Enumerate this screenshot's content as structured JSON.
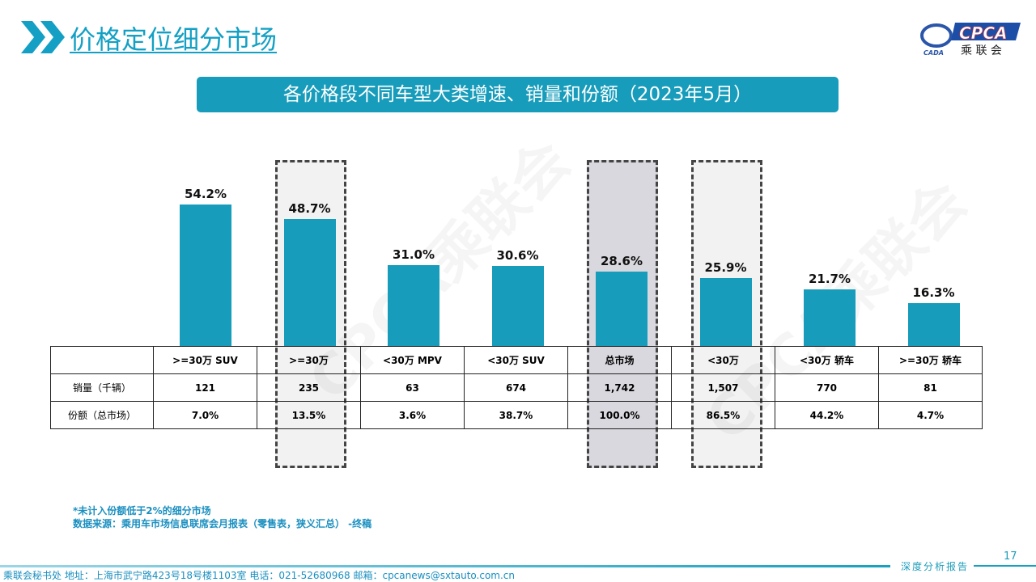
{
  "header": {
    "title": "价格定位细分市场",
    "banner": "各价格段不同车型大类增速、销量和份额（2023年5月）",
    "logo_text": "CPCA 乘联会",
    "logo_sub": "CADA"
  },
  "chart_data": {
    "type": "bar",
    "categories": [
      ">=30万 SUV",
      ">=30万",
      "<30万 MPV",
      "<30万 SUV",
      "总市场",
      "<30万",
      "<30万 轿车",
      ">=30万 轿车"
    ],
    "values": [
      54.2,
      48.7,
      31.0,
      30.6,
      28.6,
      25.9,
      21.7,
      16.3
    ],
    "value_labels": [
      "54.2%",
      "48.7%",
      "31.0%",
      "30.6%",
      "28.6%",
      "25.9%",
      "21.7%",
      "16.3%"
    ],
    "ylim": [
      0,
      60
    ],
    "highlighted": [
      ">=30万",
      "总市场",
      "<30万"
    ],
    "bar_color": "#179cbb",
    "table": {
      "rows": [
        {
          "label": "销量（千辆）",
          "values": [
            "121",
            "235",
            "63",
            "674",
            "1,742",
            "1,507",
            "770",
            "81"
          ]
        },
        {
          "label": "份额（总市场）",
          "values": [
            "7.0%",
            "13.5%",
            "3.6%",
            "38.7%",
            "100.0%",
            "86.5%",
            "44.2%",
            "4.7%"
          ]
        }
      ]
    }
  },
  "notes": [
    "*未计入份额低于2%的细分市场",
    "数据来源：乘用车市场信息联席会月报表（零售表，狭义汇总） -终稿"
  ],
  "footer": {
    "address": "乘联会秘书处   地址：上海市武宁路423号18号楼1103室  电话：021-52680968   邮箱：cpcanews@sxtauto.com.cn",
    "page": "17",
    "report": "深度分析报告"
  },
  "watermark": "CPCA乘联会"
}
